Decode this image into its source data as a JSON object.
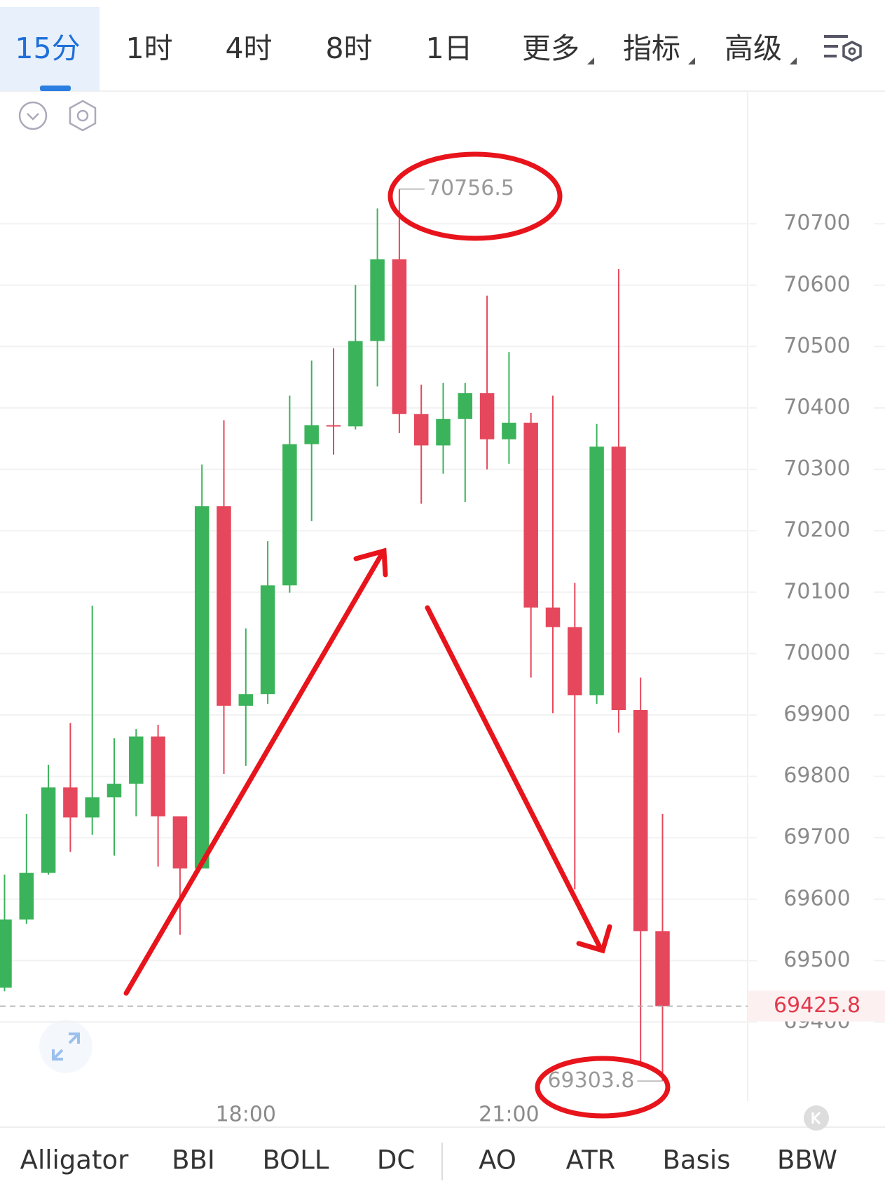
{
  "toolbar": {
    "tabs": [
      "15分",
      "1时",
      "4时",
      "8时",
      "1日",
      "更多",
      "指标",
      "高级"
    ],
    "active": 0
  },
  "chart_data": {
    "type": "candlestick",
    "x": [
      null,
      null,
      null,
      null,
      null,
      null,
      null,
      null,
      null,
      null,
      null,
      "18:00",
      null,
      null,
      null,
      null,
      null,
      null,
      null,
      null,
      null,
      null,
      null,
      "21:00",
      null,
      null,
      null,
      null,
      null,
      null,
      null
    ],
    "open": [
      69456,
      69567,
      69643,
      69782,
      69733,
      69766,
      69788,
      69865,
      69735,
      69650,
      70240,
      69915,
      69934,
      70111,
      70341,
      70372,
      70370,
      70509,
      70642,
      70390,
      70339,
      70382,
      70424,
      70349,
      70376,
      70075,
      70043,
      69932,
      70337,
      69908,
      69548
    ],
    "high": [
      69640,
      69739,
      69819,
      69887,
      70078,
      69862,
      69877,
      69884,
      69735,
      70308,
      70380,
      70041,
      70183,
      70420,
      70477,
      70497,
      70600,
      70725,
      70756.5,
      70438,
      70441,
      70441,
      70583,
      70491,
      70392,
      70420,
      70115,
      70374,
      70626,
      69961,
      69739
    ],
    "low": [
      69450,
      69560,
      69640,
      69677,
      69705,
      69671,
      69735,
      69653,
      69542,
      69650,
      69804,
      69817,
      69918,
      70099,
      70216,
      70324,
      70365,
      70435,
      70359,
      70244,
      70293,
      70247,
      70300,
      70309,
      69961,
      69903,
      69616,
      69918,
      69871,
      69330,
      69303.8
    ],
    "close": [
      69567,
      69643,
      69782,
      69733,
      69766,
      69788,
      69865,
      69735,
      69650,
      70240,
      69915,
      69934,
      70111,
      70341,
      70372,
      70370,
      70509,
      70642,
      70390,
      70339,
      70382,
      70424,
      70349,
      70376,
      70075,
      70043,
      69932,
      70337,
      69908,
      69548,
      69425.8
    ],
    "up_color": "#3bb35a",
    "down_color": "#e5485c",
    "ylim": [
      69271,
      70916
    ],
    "yticks": [
      69400,
      69500,
      69600,
      69700,
      69800,
      69900,
      70000,
      70100,
      70200,
      70300,
      70400,
      70500,
      70600,
      70700
    ],
    "grid": true
  },
  "indicators": [
    "Alligator",
    "BBI",
    "BOLL",
    "DC",
    "AO",
    "ATR",
    "Basis",
    "BBW"
  ]
}
